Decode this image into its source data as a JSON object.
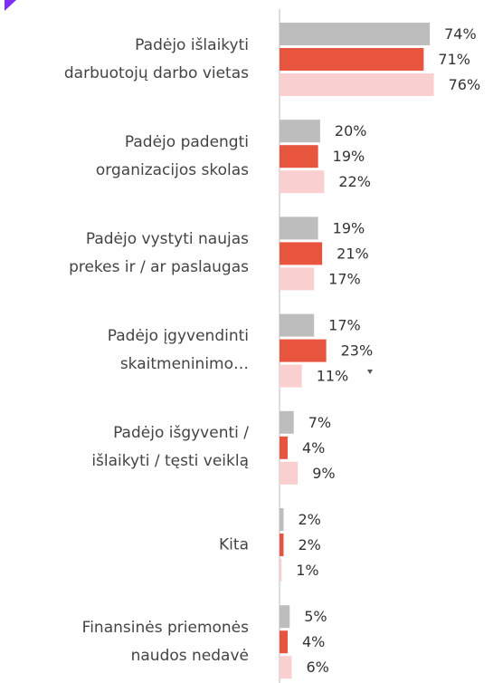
{
  "chart_data": {
    "type": "hbar",
    "categories": [
      "Padėjo išlaikyti\ndarbuotojų darbo vietas",
      "Padėjo padengti\norganizacijos skolas",
      "Padėjo vystyti naujas\nprekes ir / ar paslaugas",
      "Padėjo įgyvendinti\nskaitmeninimo…",
      "Padėjo išgyventi /\nišlaikyti / tęsti veiklą",
      "Kita",
      "Finansinės priemonės\nnaudos nedavė"
    ],
    "series": [
      {
        "color": "#bdbdbd",
        "values": [
          74,
          20,
          19,
          17,
          7,
          2,
          5
        ],
        "value_labels": [
          "74%",
          "20%",
          "19%",
          "17%",
          "7%",
          "2%",
          "5%"
        ]
      },
      {
        "color": "#e8553f",
        "values": [
          71,
          19,
          21,
          23,
          4,
          2,
          4
        ],
        "value_labels": [
          "71%",
          "19%",
          "21%",
          "23%",
          "4%",
          "2%",
          "4%"
        ]
      },
      {
        "color": "#f9cfcf",
        "values": [
          76,
          22,
          17,
          11,
          9,
          1,
          6
        ],
        "value_labels": [
          "76%",
          "22%",
          "17%",
          "11%",
          "9%",
          "1%",
          "6%"
        ]
      }
    ],
    "xlim": [
      0,
      100
    ]
  }
}
